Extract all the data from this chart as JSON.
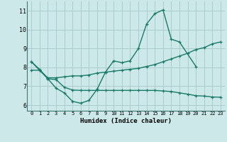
{
  "xlabel": "Humidex (Indice chaleur)",
  "bg_color": "#cce8e8",
  "grid_color": "#aacccc",
  "line_color": "#1a7a6a",
  "xlim": [
    -0.5,
    23.5
  ],
  "ylim": [
    5.7,
    11.5
  ],
  "ytick_values": [
    6,
    7,
    8,
    9,
    10,
    11
  ],
  "line1_x": [
    0,
    1,
    2,
    3,
    4,
    5,
    6,
    7,
    8,
    9,
    10,
    11,
    12,
    13,
    14,
    15,
    16,
    17,
    18,
    20
  ],
  "line1_y": [
    8.3,
    7.9,
    7.4,
    6.9,
    6.65,
    6.2,
    6.1,
    6.25,
    6.85,
    7.75,
    8.35,
    8.25,
    8.35,
    9.0,
    10.3,
    10.85,
    11.05,
    9.5,
    9.35,
    8.05
  ],
  "line2_x": [
    0,
    1,
    2,
    3,
    4,
    5,
    6,
    7,
    8,
    9,
    10,
    11,
    12,
    13,
    14,
    15,
    16,
    17,
    18,
    19,
    20,
    21,
    22,
    23
  ],
  "line2_y": [
    8.3,
    7.85,
    7.45,
    7.45,
    7.5,
    7.55,
    7.55,
    7.6,
    7.7,
    7.75,
    7.8,
    7.85,
    7.9,
    7.95,
    8.05,
    8.15,
    8.3,
    8.45,
    8.6,
    8.75,
    8.95,
    9.05,
    9.25,
    9.35
  ],
  "line3_x": [
    0,
    1,
    2,
    3,
    4,
    5,
    6,
    7,
    8,
    9,
    10,
    11,
    12,
    13,
    14,
    15,
    16,
    17,
    18,
    19,
    20,
    21,
    22,
    23
  ],
  "line3_y": [
    7.85,
    7.85,
    7.4,
    7.35,
    6.95,
    6.8,
    6.78,
    6.78,
    6.78,
    6.78,
    6.78,
    6.78,
    6.78,
    6.78,
    6.78,
    6.78,
    6.75,
    6.72,
    6.65,
    6.58,
    6.5,
    6.48,
    6.43,
    6.42
  ]
}
